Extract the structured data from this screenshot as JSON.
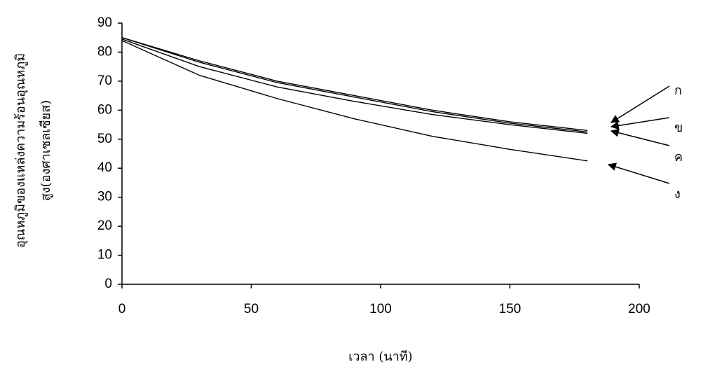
{
  "chart_data": {
    "type": "line",
    "y_label": [
      "อุณหภูมิของแหล่งความร้อนอุณหภูมิ",
      "สูง(องศาเซลเซียส)"
    ],
    "x_label": "เวลา (นาที)",
    "x": [
      0,
      30,
      60,
      90,
      120,
      150,
      180
    ],
    "series": [
      {
        "name": "ก",
        "color": "#000000",
        "values": [
          85,
          77,
          70,
          65,
          60,
          56,
          53
        ]
      },
      {
        "name": "ข",
        "color": "#000000",
        "values": [
          85,
          76.5,
          69.5,
          64.5,
          59.5,
          55.5,
          52.5
        ]
      },
      {
        "name": "ค",
        "color": "#000000",
        "values": [
          84.5,
          75,
          68,
          63,
          58.5,
          55,
          52
        ]
      },
      {
        "name": "ง",
        "color": "#000000",
        "values": [
          84,
          72,
          64,
          57,
          51,
          46.5,
          42.5
        ]
      }
    ],
    "xlim": [
      0,
      200
    ],
    "xticks": [
      0,
      50,
      100,
      150,
      200
    ],
    "ylim": [
      0,
      90
    ],
    "yticks": [
      0,
      10,
      20,
      30,
      40,
      50,
      60,
      70,
      80,
      90
    ],
    "grid": false
  }
}
